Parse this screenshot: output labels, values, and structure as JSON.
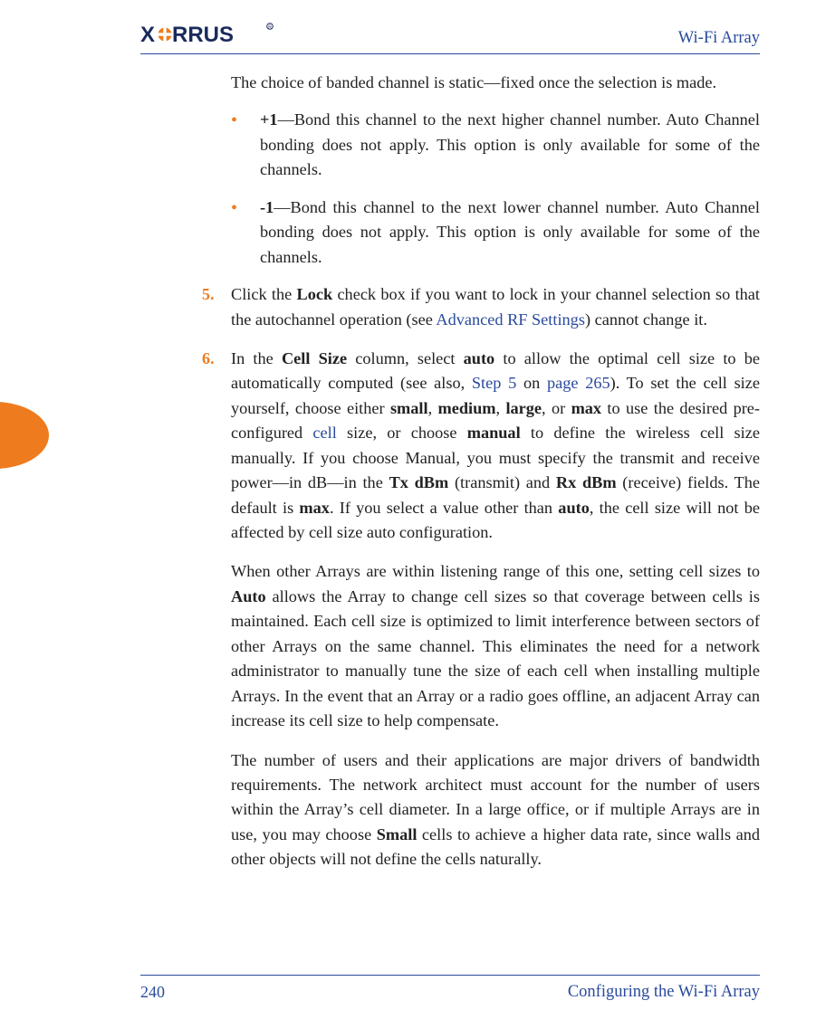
{
  "colors": {
    "rule": "#2a4a9c",
    "accent_orange": "#ef7b1f",
    "accent_yellow": "#f7c94a",
    "link": "#2a4a9c",
    "text": "#222222",
    "background": "#ffffff",
    "logo_dark": "#1a2a5c",
    "logo_orange": "#ef7b1f"
  },
  "typography": {
    "body_pt": 13.5,
    "line_height": 1.5,
    "family": "Palatino"
  },
  "header": {
    "product": "Wi-Fi Array",
    "logo_alt": "XIRRUS"
  },
  "footer": {
    "page_number": "240",
    "section": "Configuring the Wi-Fi Array"
  },
  "intro": {
    "text": "The choice of banded channel is static—fixed once the selection is made."
  },
  "bullets": [
    {
      "lead_bold": "+1",
      "rest": "—Bond this channel to the next higher channel number. Auto Channel bonding does not apply. This option is only available for some of the channels."
    },
    {
      "lead_bold": "-1",
      "rest": "—Bond this channel to the next lower channel number. Auto Channel bonding does not apply. This option is only available for some of the channels."
    }
  ],
  "steps": [
    {
      "num": "5.",
      "runs": [
        {
          "t": "Click the "
        },
        {
          "t": "Lock",
          "b": true
        },
        {
          "t": " check box if you want to lock in your channel selection so that the autochannel operation (see "
        },
        {
          "t": "Advanced RF Settings",
          "link": true
        },
        {
          "t": ") cannot change it."
        }
      ]
    },
    {
      "num": "6.",
      "paragraphs": [
        [
          {
            "t": "In the "
          },
          {
            "t": "Cell Size",
            "b": true
          },
          {
            "t": " column, select "
          },
          {
            "t": "auto",
            "b": true
          },
          {
            "t": " to allow the optimal cell size to be automatically computed (see also, "
          },
          {
            "t": "Step 5",
            "link": true
          },
          {
            "t": " on "
          },
          {
            "t": "page 265",
            "link": true
          },
          {
            "t": "). To set the cell size yourself, choose either "
          },
          {
            "t": "small",
            "b": true
          },
          {
            "t": ", "
          },
          {
            "t": "medium",
            "b": true
          },
          {
            "t": ", "
          },
          {
            "t": "large",
            "b": true
          },
          {
            "t": ", or "
          },
          {
            "t": "max",
            "b": true
          },
          {
            "t": " to use the desired pre-configured "
          },
          {
            "t": "cell",
            "link": true
          },
          {
            "t": " size, or choose "
          },
          {
            "t": "manual",
            "b": true
          },
          {
            "t": " to define the wireless cell size manually. If you choose Manual, you must specify the transmit and receive power—in dB—in the "
          },
          {
            "t": "Tx dBm",
            "b": true
          },
          {
            "t": " (transmit) and "
          },
          {
            "t": "Rx dBm",
            "b": true
          },
          {
            "t": " (receive) fields. The default is "
          },
          {
            "t": "max",
            "b": true
          },
          {
            "t": ". If you select a value other than "
          },
          {
            "t": "auto",
            "b": true
          },
          {
            "t": ", the cell size will not be affected by cell size auto configuration."
          }
        ],
        [
          {
            "t": "When other Arrays are within listening range of this one, setting cell sizes to "
          },
          {
            "t": "Auto",
            "b": true
          },
          {
            "t": " allows the Array to change cell sizes so that coverage between cells is maintained. Each cell size is optimized to limit interference between sectors of other Arrays on the same channel. This eliminates the need for a network administrator to manually tune the size of each cell when installing multiple Arrays. In the event that an Array or a radio goes offline, an adjacent Array can increase its cell size to help compensate."
          }
        ],
        [
          {
            "t": "The number of users and their applications are major drivers of bandwidth requirements. The network architect must account for the number of users within the Array’s cell diameter. In a large office, or if multiple Arrays are in use, you may choose "
          },
          {
            "t": "Small",
            "b": true
          },
          {
            "t": " cells to achieve a higher data rate, since walls and other objects will not define the cells naturally."
          }
        ]
      ]
    }
  ]
}
